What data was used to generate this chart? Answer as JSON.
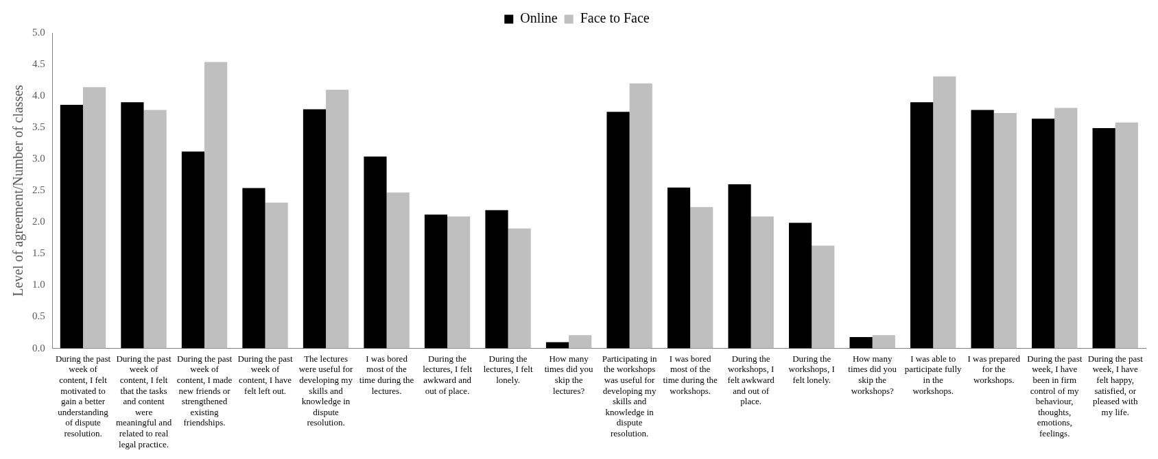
{
  "chart_data": {
    "type": "bar",
    "ylabel": "Level of agreement/Number of classes",
    "categories": [
      "During the past week of content, I felt motivated to gain a better understanding of dispute resolution.",
      "During the past week of content, I felt that the tasks and content were meaningful and related to real legal practice.",
      "During the past week of content, I made new friends or strengthened existing friendships.",
      "During the past week of content, I have felt left out.",
      "The lectures were useful for developing my skills and knowledge in dispute resolution.",
      "I was bored most of the time during the lectures.",
      "During the lectures, I felt awkward and out of place.",
      "During the lectures, I felt lonely.",
      "How many times did you skip the lectures?",
      "Participating in the workshops was useful for developing my skills and knowledge in dispute resolution.",
      "I was bored most of the time during the workshops.",
      "During the workshops, I felt awkward and out of place.",
      "During the workshops, I felt lonely.",
      "How many times did you skip the workshops?",
      "I was able to participate fully in the workshops.",
      "I was prepared for the workshops.",
      "During the past week, I have been in firm control of my behaviour, thoughts, emotions, feelings.",
      "During the past week, I have felt happy, satisfied, or pleased with my life."
    ],
    "series": [
      {
        "name": "Online",
        "color": "#000000",
        "values": [
          3.86,
          3.9,
          3.12,
          2.54,
          3.79,
          3.04,
          2.12,
          2.19,
          0.1,
          3.75,
          2.55,
          2.6,
          1.99,
          0.18,
          3.9,
          3.78,
          3.64,
          3.49
        ]
      },
      {
        "name": "Face to Face",
        "color": "#bfbfbf",
        "values": [
          4.14,
          3.78,
          4.54,
          2.31,
          4.1,
          2.47,
          2.09,
          1.9,
          0.21,
          4.2,
          2.24,
          2.09,
          1.63,
          0.21,
          4.31,
          3.73,
          3.81,
          3.58
        ]
      }
    ],
    "ylim": [
      0,
      5
    ],
    "yticks": [
      {
        "value": 0,
        "label": "0.0"
      },
      0.5,
      {
        "value": 1,
        "label": "1.0"
      },
      1.5,
      {
        "value": 2,
        "label": "2.0"
      },
      2.5,
      {
        "value": 3,
        "label": "3.0"
      },
      3.5,
      {
        "value": 4,
        "label": "4.0"
      },
      4.5,
      {
        "value": 5,
        "label": "5.0"
      }
    ],
    "grid": false,
    "legend": "top"
  }
}
